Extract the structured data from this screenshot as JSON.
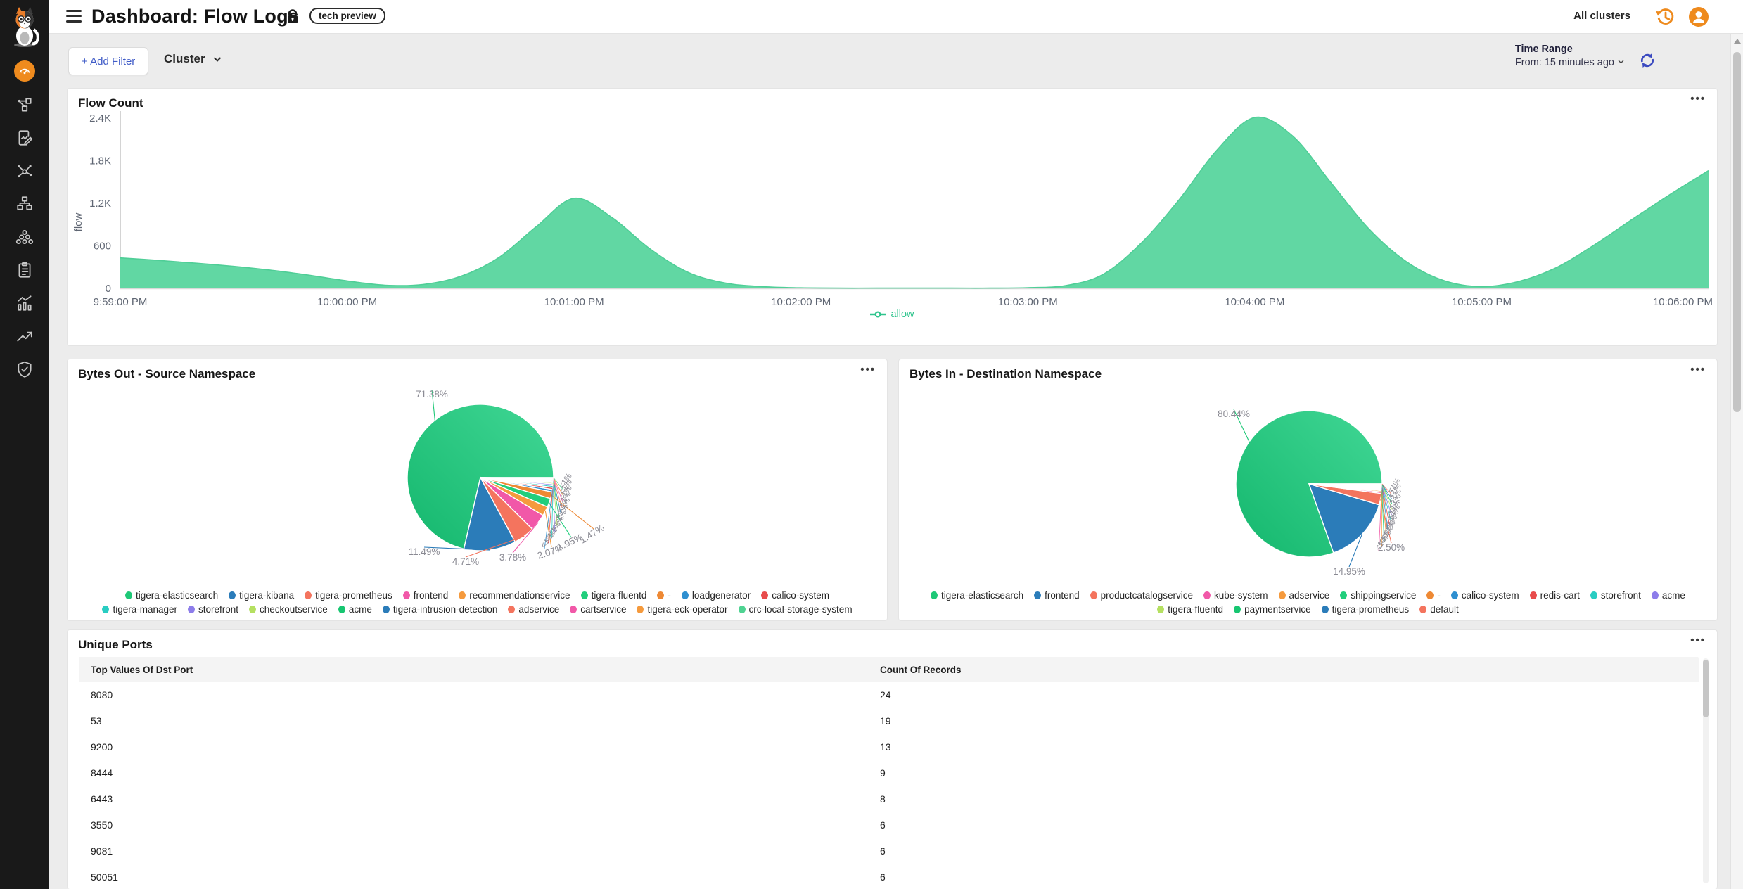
{
  "header": {
    "title": "Dashboard: Flow Logs",
    "badge": "tech preview",
    "cluster_scope": "All clusters",
    "icons": [
      "menu-icon",
      "lock-icon",
      "history-icon",
      "user-avatar-icon"
    ]
  },
  "sidebar": {
    "logo": "calico-cat-logo",
    "icons": [
      "dashboard-icon",
      "service-graph-icon",
      "flow-logs-icon",
      "network-graph-icon",
      "infrastructure-icon",
      "clusters-icon",
      "compliance-reports-icon",
      "statistics-icon",
      "trends-icon",
      "security-shield-icon"
    ],
    "active_icon": "dashboard-icon",
    "active_color": "#ef8b1e"
  },
  "filter_bar": {
    "add_filter_label": "+ Add Filter",
    "cluster_dropdown_label": "Cluster",
    "time_range_label": "Time Range",
    "time_range_value": "From: 15 minutes ago",
    "refresh_icon": "refresh-icon"
  },
  "colors": {
    "accent_orange": "#ef8b1e",
    "accent_blue": "#3f5bc7",
    "area_green": "#61d7a3",
    "legend_green": "#2fc48d",
    "sidebar_bg": "#191919",
    "page_bg": "#ececec"
  },
  "chart_data": [
    {
      "type": "area",
      "title": "Flow Count",
      "ylabel": "flow",
      "ylim": [
        0,
        2400
      ],
      "y_ticks": [
        0,
        600,
        1200,
        1800,
        2400
      ],
      "y_tick_labels": [
        "0",
        "600",
        "1.2K",
        "1.8K",
        "2.4K"
      ],
      "x_ticks": [
        "9:59:00 PM",
        "10:00:00 PM",
        "10:01:00 PM",
        "10:02:00 PM",
        "10:03:00 PM",
        "10:04:00 PM",
        "10:05:00 PM",
        "10:06:00 PM"
      ],
      "grid": false,
      "legend_position": "bottom",
      "series": [
        {
          "name": "allow",
          "color": "#61d7a3",
          "x_seconds": [
            0,
            10,
            20,
            30,
            40,
            50,
            60,
            70,
            80,
            90,
            100,
            110,
            120,
            130,
            140,
            150,
            160,
            170,
            180,
            190,
            200,
            210,
            220,
            230,
            240,
            250,
            260,
            270,
            280,
            290,
            300,
            310,
            320,
            330,
            340,
            350,
            360,
            370,
            380,
            390,
            400,
            410,
            420
          ],
          "values": [
            430,
            395,
            355,
            310,
            255,
            185,
            105,
            45,
            55,
            170,
            430,
            870,
            1270,
            1000,
            560,
            230,
            75,
            25,
            8,
            4,
            4,
            4,
            4,
            4,
            10,
            40,
            200,
            640,
            1250,
            1950,
            2410,
            2150,
            1500,
            850,
            380,
            110,
            25,
            100,
            300,
            620,
            980,
            1330,
            1660
          ]
        }
      ]
    },
    {
      "type": "pie",
      "title": "Bytes Out - Source Namespace",
      "slices": [
        {
          "name": "tigera-elasticsearch",
          "value": 71.38,
          "label": "71.38%",
          "color": "#1ec877"
        },
        {
          "name": "tigera-kibana",
          "value": 11.49,
          "label": "11.49%",
          "color": "#2b7cb9"
        },
        {
          "name": "tigera-prometheus",
          "value": 4.71,
          "label": "4.71%",
          "color": "#f4745e"
        },
        {
          "name": "frontend",
          "value": 3.78,
          "label": "3.78%",
          "color": "#f158a8"
        },
        {
          "name": "recommendationservice",
          "value": 2.07,
          "label": "2.07%",
          "color": "#f59a3d"
        },
        {
          "name": "tigera-fluentd",
          "value": 1.95,
          "label": "1.95%",
          "color": "#21ce7c"
        },
        {
          "name": "-",
          "value": 1.47,
          "label": "1.47%",
          "color": "#ee8934"
        },
        {
          "name": "loadgenerator",
          "value": 0.55,
          "label": "<1%",
          "color": "#2e8fd0"
        },
        {
          "name": "calico-system",
          "value": 0.45,
          "label": "<1%",
          "color": "#e84c4c"
        },
        {
          "name": "tigera-manager",
          "value": 0.4,
          "label": "<1%",
          "color": "#29cdc2"
        },
        {
          "name": "storefront",
          "value": 0.35,
          "label": "<1%",
          "color": "#8d7dea"
        },
        {
          "name": "checkoutservice",
          "value": 0.3,
          "label": "<1%",
          "color": "#b5e061"
        },
        {
          "name": "acme",
          "value": 0.25,
          "label": "<1%",
          "color": "#17c671"
        },
        {
          "name": "tigera-intrusion-detection",
          "value": 0.22,
          "label": "<1%",
          "color": "#2b7cb9"
        },
        {
          "name": "adservice",
          "value": 0.2,
          "label": "<1%",
          "color": "#f4745e"
        },
        {
          "name": "cartservice",
          "value": 0.18,
          "label": "<1%",
          "color": "#f158a8"
        },
        {
          "name": "tigera-eck-operator",
          "value": 0.13,
          "label": "<1%",
          "color": "#f59a3d"
        },
        {
          "name": "crc-local-storage-system",
          "value": 0.12,
          "label": "<1%",
          "color": "#4fd392"
        }
      ]
    },
    {
      "type": "pie",
      "title": "Bytes In - Destination Namespace",
      "slices": [
        {
          "name": "tigera-elasticsearch",
          "value": 80.44,
          "label": "80.44%",
          "color": "#1ec877"
        },
        {
          "name": "frontend",
          "value": 14.95,
          "label": "14.95%",
          "color": "#2b7cb9"
        },
        {
          "name": "productcatalogservice",
          "value": 2.5,
          "label": "2.50%",
          "color": "#f4745e"
        },
        {
          "name": "kube-system",
          "value": 0.35,
          "label": "<1%",
          "color": "#f158a8"
        },
        {
          "name": "adservice",
          "value": 0.3,
          "label": "<1%",
          "color": "#f59a3d"
        },
        {
          "name": "shippingservice",
          "value": 0.25,
          "label": "<1%",
          "color": "#21ce7c"
        },
        {
          "name": "-",
          "value": 0.22,
          "label": "<1%",
          "color": "#ee8934"
        },
        {
          "name": "calico-system",
          "value": 0.2,
          "label": "<1%",
          "color": "#2e8fd0"
        },
        {
          "name": "redis-cart",
          "value": 0.18,
          "label": "<1%",
          "color": "#e84c4c"
        },
        {
          "name": "storefront",
          "value": 0.15,
          "label": "<1%",
          "color": "#29cdc2"
        },
        {
          "name": "acme",
          "value": 0.13,
          "label": "<1%",
          "color": "#8d7dea"
        },
        {
          "name": "tigera-fluentd",
          "value": 0.11,
          "label": "<1%",
          "color": "#b5e061"
        },
        {
          "name": "paymentservice",
          "value": 0.09,
          "label": "<1%",
          "color": "#17c671"
        },
        {
          "name": "tigera-prometheus",
          "value": 0.07,
          "label": "<1%",
          "color": "#2b7cb9"
        },
        {
          "name": "default",
          "value": 0.06,
          "label": "<1%",
          "color": "#f4745e"
        }
      ]
    },
    {
      "type": "table",
      "title": "Unique Ports",
      "columns": [
        "Top Values Of Dst Port",
        "Count Of Records"
      ],
      "rows": [
        [
          "8080",
          "24"
        ],
        [
          "53",
          "19"
        ],
        [
          "9200",
          "13"
        ],
        [
          "8444",
          "9"
        ],
        [
          "6443",
          "8"
        ],
        [
          "3550",
          "6"
        ],
        [
          "9081",
          "6"
        ],
        [
          "50051",
          "6"
        ]
      ]
    }
  ]
}
